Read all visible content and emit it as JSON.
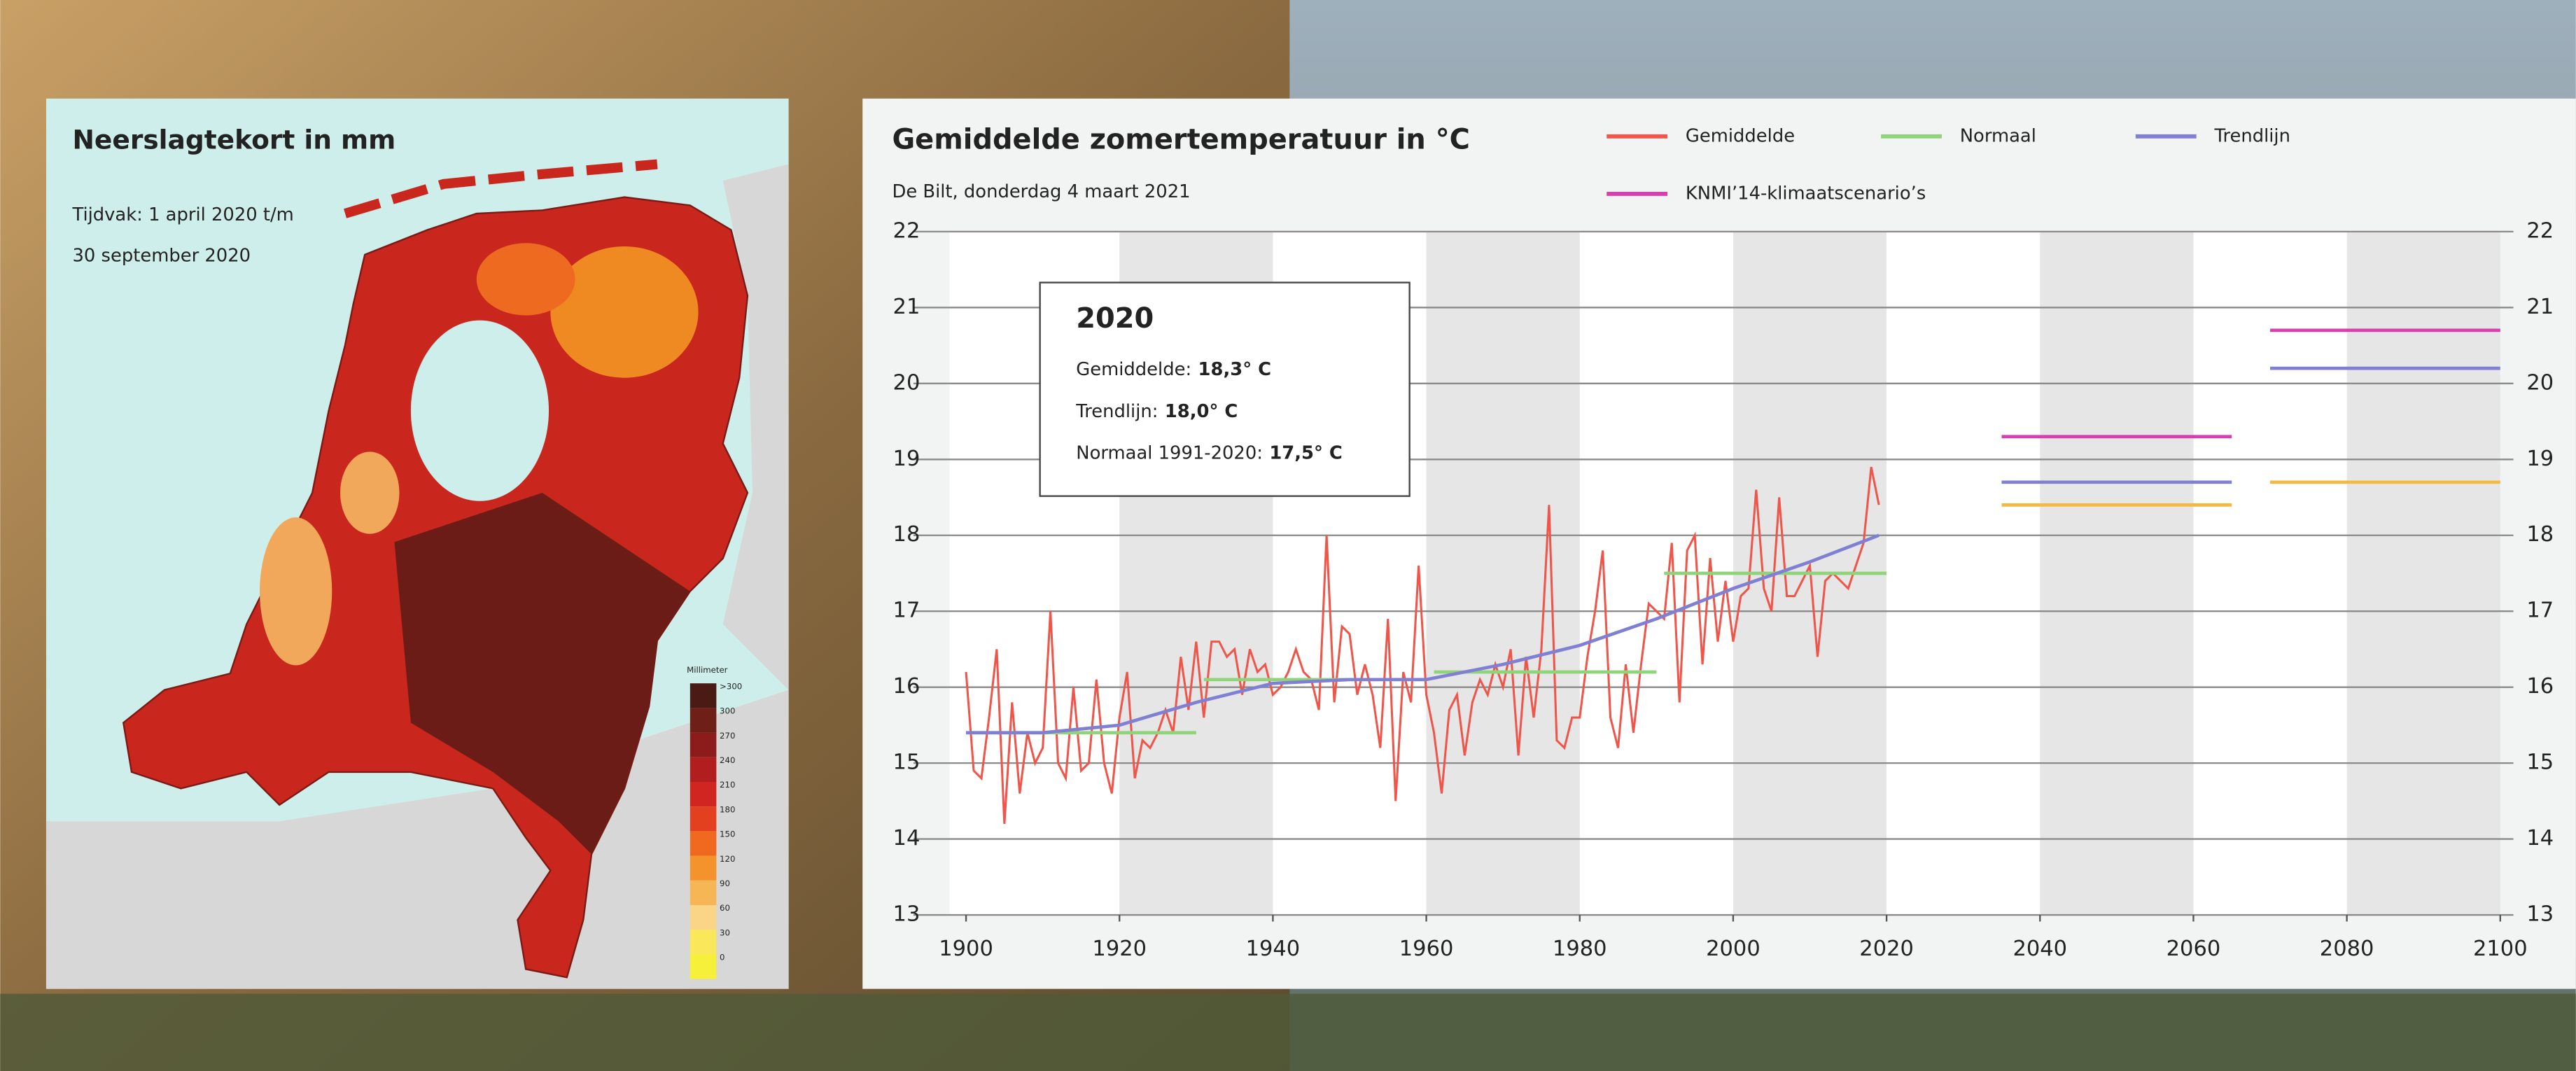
{
  "map": {
    "title": "Neerslagtekort in mm",
    "period_line1": "Tijdvak: 1 april 2020 t/m",
    "period_line2": "30 september 2020",
    "legend": {
      "title": "Millimeter",
      "labels": [
        ">300",
        "300",
        "270",
        "240",
        "210",
        "180",
        "150",
        "120",
        "90",
        "60",
        "30",
        "0"
      ],
      "colors": [
        "#4a1a14",
        "#6e1f18",
        "#8c1b1b",
        "#b01e20",
        "#d0261f",
        "#e3401f",
        "#ef6a1f",
        "#f4922b",
        "#f7b655",
        "#fad487",
        "#fbe85a",
        "#f7f03a"
      ]
    }
  },
  "chart_data": {
    "type": "line",
    "title": "Gemiddelde zomertemperatuur in °C",
    "subtitle": "De Bilt, donderdag 4 maart 2021",
    "xlim": [
      1900,
      2100
    ],
    "xticks": [
      1900,
      1920,
      1940,
      1960,
      1980,
      2000,
      2020,
      2040,
      2060,
      2080,
      2100
    ],
    "ylim": [
      13,
      22
    ],
    "yticks": [
      13,
      14,
      15,
      16,
      17,
      18,
      19,
      20,
      21,
      22
    ],
    "grid": true,
    "annotation": {
      "title": "2020",
      "lines": [
        {
          "label": "Gemiddelde:",
          "value": "18,3° C"
        },
        {
          "label": "Trendlijn:",
          "value": "18,0° C"
        },
        {
          "label": "Normaal 1991-2020:",
          "value": "17,5° C"
        }
      ]
    },
    "series": [
      {
        "name": "Gemiddelde",
        "color": "#f0554a",
        "x": [
          1900,
          1901,
          1902,
          1903,
          1904,
          1905,
          1906,
          1907,
          1908,
          1909,
          1910,
          1911,
          1912,
          1913,
          1914,
          1915,
          1916,
          1917,
          1918,
          1919,
          1920,
          1921,
          1922,
          1923,
          1924,
          1925,
          1926,
          1927,
          1928,
          1929,
          1930,
          1931,
          1932,
          1933,
          1934,
          1935,
          1936,
          1937,
          1938,
          1939,
          1940,
          1941,
          1942,
          1943,
          1944,
          1945,
          1946,
          1947,
          1948,
          1949,
          1950,
          1951,
          1952,
          1953,
          1954,
          1955,
          1956,
          1957,
          1958,
          1959,
          1960,
          1961,
          1962,
          1963,
          1964,
          1965,
          1966,
          1967,
          1968,
          1969,
          1970,
          1971,
          1972,
          1973,
          1974,
          1975,
          1976,
          1977,
          1978,
          1979,
          1980,
          1981,
          1982,
          1983,
          1984,
          1985,
          1986,
          1987,
          1988,
          1989,
          1990,
          1991,
          1992,
          1993,
          1994,
          1995,
          1996,
          1997,
          1998,
          1999,
          2000,
          2001,
          2002,
          2003,
          2004,
          2005,
          2006,
          2007,
          2008,
          2009,
          2010,
          2011,
          2012,
          2013,
          2014,
          2015,
          2016,
          2017,
          2018,
          2019
        ],
        "values": [
          16.2,
          14.9,
          14.8,
          15.6,
          16.5,
          14.2,
          15.8,
          14.6,
          15.4,
          15.0,
          15.2,
          17.0,
          15.0,
          14.8,
          16.0,
          14.9,
          15.0,
          16.1,
          15.0,
          14.6,
          15.6,
          16.2,
          14.8,
          15.3,
          15.2,
          15.4,
          15.7,
          15.4,
          16.4,
          15.7,
          16.6,
          15.6,
          16.6,
          16.6,
          16.4,
          16.5,
          15.9,
          16.5,
          16.2,
          16.3,
          15.9,
          16.0,
          16.2,
          16.5,
          16.2,
          16.1,
          15.7,
          18.0,
          15.8,
          16.8,
          16.7,
          15.9,
          16.3,
          15.9,
          15.2,
          16.9,
          14.5,
          16.2,
          15.8,
          17.6,
          15.9,
          15.4,
          14.6,
          15.7,
          15.9,
          15.1,
          15.8,
          16.1,
          15.9,
          16.3,
          16.0,
          16.5,
          15.1,
          16.4,
          15.6,
          16.5,
          18.4,
          15.3,
          15.2,
          15.6,
          15.6,
          16.4,
          17.0,
          17.8,
          15.6,
          15.2,
          16.3,
          15.4,
          16.3,
          17.1,
          17.0,
          16.9,
          17.9,
          15.8,
          17.8,
          18.0,
          16.3,
          17.7,
          16.6,
          17.4,
          16.6,
          17.2,
          17.3,
          18.6,
          17.3,
          17.0,
          18.5,
          17.2,
          17.2,
          17.4,
          17.6,
          16.4,
          17.4,
          17.5,
          17.4,
          17.3,
          17.6,
          17.9,
          18.9,
          18.4
        ]
      },
      {
        "name": "Normaal",
        "color": "#8fd47a",
        "segments": [
          {
            "x": [
              1901,
              1930
            ],
            "value": 15.4
          },
          {
            "x": [
              1931,
              1960
            ],
            "value": 16.1
          },
          {
            "x": [
              1961,
              1990
            ],
            "value": 16.2
          },
          {
            "x": [
              1991,
              2020
            ],
            "value": 17.5
          }
        ]
      },
      {
        "name": "Trendlijn",
        "color": "#7f7fd4",
        "x": [
          1900,
          1910,
          1920,
          1930,
          1940,
          1950,
          1960,
          1970,
          1980,
          1990,
          2000,
          2010,
          2019
        ],
        "values": [
          15.4,
          15.4,
          15.5,
          15.8,
          16.05,
          16.1,
          16.1,
          16.3,
          16.55,
          16.9,
          17.3,
          17.65,
          18.0
        ]
      },
      {
        "name": "KNMI’14-klimaatscenario’s",
        "color": "#d63fae",
        "segments": [
          {
            "x": [
              2035,
              2065
            ],
            "value": 19.3
          },
          {
            "x": [
              2070,
              2100
            ],
            "value": 20.7
          }
        ]
      }
    ],
    "other_segments": [
      {
        "color": "#7f7fd4",
        "segments": [
          {
            "x": [
              2035,
              2065
            ],
            "value": 18.7
          },
          {
            "x": [
              2070,
              2100
            ],
            "value": 20.2
          }
        ]
      },
      {
        "color": "#f5b942",
        "segments": [
          {
            "x": [
              2035,
              2065
            ],
            "value": 18.4
          },
          {
            "x": [
              2070,
              2100
            ],
            "value": 18.7
          }
        ]
      }
    ]
  }
}
